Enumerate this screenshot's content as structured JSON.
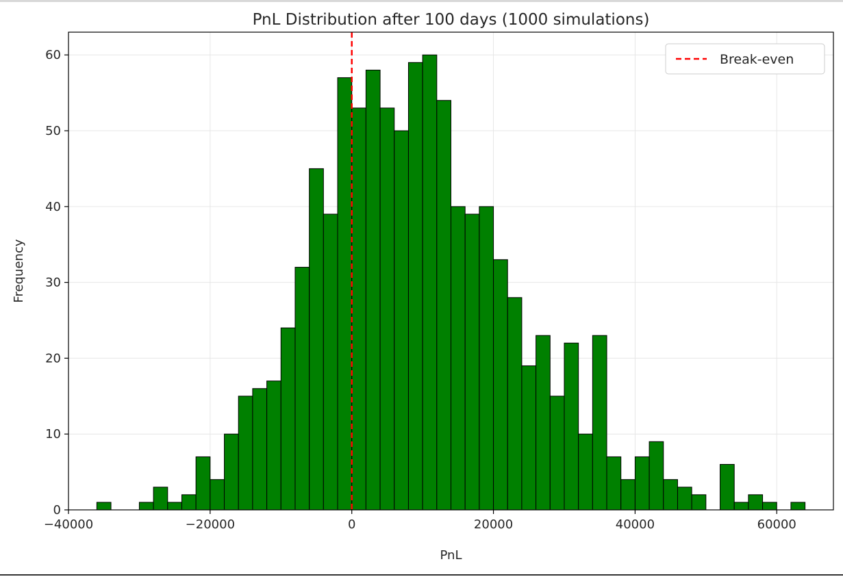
{
  "chart_data": {
    "type": "bar",
    "title": "PnL Distribution after 100 days (1000 simulations)",
    "xlabel": "PnL",
    "ylabel": "Frequency",
    "xlim": [
      -40000,
      68000
    ],
    "ylim": [
      0,
      63
    ],
    "grid": true,
    "legend_position": "top-right",
    "bar_color": "#008000",
    "edge_color": "#000000",
    "bin_start": -36000,
    "bin_width": 2000,
    "counts": [
      1,
      0,
      0,
      1,
      3,
      1,
      2,
      7,
      4,
      10,
      15,
      16,
      17,
      24,
      32,
      45,
      39,
      57,
      53,
      58,
      53,
      50,
      59,
      60,
      54,
      40,
      39,
      40,
      33,
      28,
      19,
      23,
      15,
      22,
      10,
      23,
      7,
      4,
      7,
      9,
      4,
      3,
      2,
      0,
      6,
      1,
      2,
      1,
      0,
      1
    ],
    "x_ticks": [
      -40000,
      -20000,
      0,
      20000,
      40000,
      60000
    ],
    "x_tick_labels": [
      "−40000",
      "−20000",
      "0",
      "20000",
      "40000",
      "60000"
    ],
    "y_ticks": [
      0,
      10,
      20,
      30,
      40,
      50,
      60
    ],
    "y_tick_labels": [
      "0",
      "10",
      "20",
      "30",
      "40",
      "50",
      "60"
    ],
    "reference_line": {
      "x": 0,
      "label": "Break-even",
      "color": "#ff0000",
      "style": "dashed"
    },
    "legend": [
      {
        "label": "Break-even",
        "color": "#ff0000",
        "style": "dashed"
      }
    ]
  }
}
